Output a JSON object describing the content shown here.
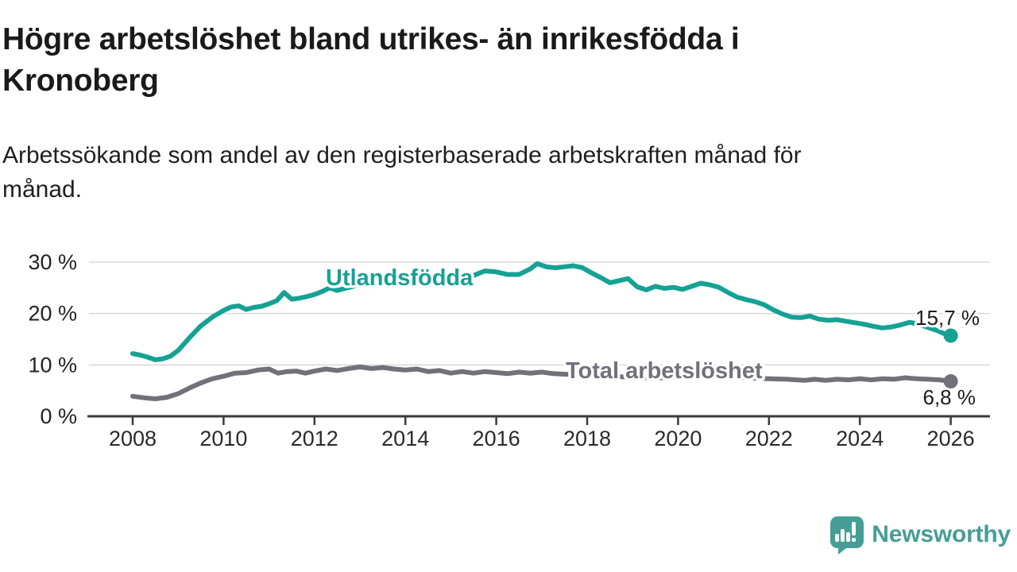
{
  "header": {
    "title_lines": [
      "Högre arbetslöshet bland utrikes- än inrikesfödda i",
      "Kronoberg"
    ],
    "subtitle_lines": [
      "Arbetssökande som andel av den registerbaserade arbetskraften månad för",
      "månad."
    ]
  },
  "footer": {
    "brand": "Newsworthy",
    "logo_icon": "speech-bubble-bar-chart-icon"
  },
  "colors": {
    "accent_teal": "#16a195",
    "series_gray": "#727079",
    "brand_teal": "#459e96",
    "grid": "#d9d9d9",
    "axis": "#3b3b3b",
    "text_dark": "#1c1c1c"
  },
  "chart_data": {
    "type": "line",
    "title": "Högre arbetslöshet bland utrikes- än inrikesfödda i Kronoberg",
    "subtitle": "Arbetssökande som andel av den registerbaserade arbetskraften månad för månad.",
    "legend_position": "inline-labels",
    "x_axis": {
      "ticks": [
        2008,
        2010,
        2012,
        2014,
        2016,
        2018,
        2020,
        2022,
        2024,
        2026
      ],
      "range": [
        2007.0,
        2026.9
      ],
      "grid": false
    },
    "y_axis": {
      "tick_values": [
        0,
        10,
        20,
        30
      ],
      "tick_labels": [
        "0 %",
        "10 %",
        "20 %",
        "30 %"
      ],
      "range": [
        0,
        31
      ],
      "grid": true
    },
    "series": [
      {
        "name": "Utlandsfödda",
        "color": "#16a195",
        "end_value": 15.7,
        "end_label": "15,7 %",
        "points": [
          [
            2008.0,
            12.2
          ],
          [
            2008.17,
            11.9
          ],
          [
            2008.33,
            11.5
          ],
          [
            2008.5,
            11.0
          ],
          [
            2008.67,
            11.2
          ],
          [
            2008.83,
            11.7
          ],
          [
            2009.0,
            12.8
          ],
          [
            2009.25,
            15.3
          ],
          [
            2009.5,
            17.6
          ],
          [
            2009.75,
            19.3
          ],
          [
            2010.0,
            20.6
          ],
          [
            2010.17,
            21.3
          ],
          [
            2010.33,
            21.5
          ],
          [
            2010.5,
            20.8
          ],
          [
            2010.67,
            21.2
          ],
          [
            2010.83,
            21.4
          ],
          [
            2011.0,
            21.9
          ],
          [
            2011.17,
            22.5
          ],
          [
            2011.33,
            24.1
          ],
          [
            2011.5,
            22.8
          ],
          [
            2011.67,
            23.0
          ],
          [
            2011.83,
            23.3
          ],
          [
            2012.0,
            23.7
          ],
          [
            2012.17,
            24.3
          ],
          [
            2012.33,
            25.0
          ],
          [
            2012.5,
            24.5
          ],
          [
            2012.67,
            24.9
          ],
          [
            2012.83,
            25.2
          ],
          [
            2013.0,
            25.8
          ],
          [
            2013.25,
            25.4
          ],
          [
            2013.5,
            26.0
          ],
          [
            2013.75,
            25.8
          ],
          [
            2014.0,
            26.1
          ],
          [
            2014.25,
            26.3
          ],
          [
            2014.5,
            26.1
          ],
          [
            2014.75,
            26.5
          ],
          [
            2015.0,
            26.6
          ],
          [
            2015.25,
            27.0
          ],
          [
            2015.5,
            27.4
          ],
          [
            2015.75,
            28.3
          ],
          [
            2016.0,
            28.1
          ],
          [
            2016.25,
            27.6
          ],
          [
            2016.5,
            27.6
          ],
          [
            2016.75,
            28.7
          ],
          [
            2016.9,
            29.7
          ],
          [
            2017.1,
            29.1
          ],
          [
            2017.3,
            28.9
          ],
          [
            2017.5,
            29.1
          ],
          [
            2017.7,
            29.3
          ],
          [
            2017.9,
            28.9
          ],
          [
            2018.1,
            27.9
          ],
          [
            2018.3,
            27.0
          ],
          [
            2018.5,
            26.0
          ],
          [
            2018.7,
            26.4
          ],
          [
            2018.9,
            26.8
          ],
          [
            2019.1,
            25.2
          ],
          [
            2019.3,
            24.6
          ],
          [
            2019.5,
            25.3
          ],
          [
            2019.7,
            24.9
          ],
          [
            2019.9,
            25.1
          ],
          [
            2020.1,
            24.7
          ],
          [
            2020.3,
            25.3
          ],
          [
            2020.5,
            25.9
          ],
          [
            2020.7,
            25.6
          ],
          [
            2020.9,
            25.1
          ],
          [
            2021.1,
            24.1
          ],
          [
            2021.3,
            23.2
          ],
          [
            2021.5,
            22.7
          ],
          [
            2021.7,
            22.3
          ],
          [
            2021.9,
            21.7
          ],
          [
            2022.1,
            20.7
          ],
          [
            2022.3,
            19.9
          ],
          [
            2022.5,
            19.3
          ],
          [
            2022.7,
            19.2
          ],
          [
            2022.9,
            19.5
          ],
          [
            2023.1,
            18.9
          ],
          [
            2023.3,
            18.7
          ],
          [
            2023.5,
            18.8
          ],
          [
            2023.7,
            18.5
          ],
          [
            2023.9,
            18.2
          ],
          [
            2024.1,
            17.9
          ],
          [
            2024.3,
            17.5
          ],
          [
            2024.5,
            17.2
          ],
          [
            2024.7,
            17.4
          ],
          [
            2024.9,
            17.8
          ],
          [
            2025.1,
            18.3
          ],
          [
            2025.3,
            17.9
          ],
          [
            2025.5,
            17.3
          ],
          [
            2025.7,
            16.7
          ],
          [
            2025.85,
            16.1
          ],
          [
            2026.0,
            15.7
          ]
        ]
      },
      {
        "name": "Total arbetslöshet",
        "color": "#727079",
        "end_value": 6.8,
        "end_label": "6,8 %",
        "points": [
          [
            2008.0,
            3.9
          ],
          [
            2008.25,
            3.6
          ],
          [
            2008.5,
            3.4
          ],
          [
            2008.75,
            3.7
          ],
          [
            2009.0,
            4.4
          ],
          [
            2009.25,
            5.5
          ],
          [
            2009.5,
            6.5
          ],
          [
            2009.75,
            7.3
          ],
          [
            2010.0,
            7.8
          ],
          [
            2010.25,
            8.4
          ],
          [
            2010.5,
            8.5
          ],
          [
            2010.75,
            9.0
          ],
          [
            2011.0,
            9.2
          ],
          [
            2011.2,
            8.4
          ],
          [
            2011.4,
            8.7
          ],
          [
            2011.6,
            8.8
          ],
          [
            2011.8,
            8.4
          ],
          [
            2012.0,
            8.8
          ],
          [
            2012.25,
            9.2
          ],
          [
            2012.5,
            8.9
          ],
          [
            2012.75,
            9.3
          ],
          [
            2013.0,
            9.6
          ],
          [
            2013.25,
            9.3
          ],
          [
            2013.5,
            9.5
          ],
          [
            2013.75,
            9.2
          ],
          [
            2014.0,
            9.0
          ],
          [
            2014.25,
            9.2
          ],
          [
            2014.5,
            8.7
          ],
          [
            2014.75,
            8.9
          ],
          [
            2015.0,
            8.4
          ],
          [
            2015.25,
            8.7
          ],
          [
            2015.5,
            8.4
          ],
          [
            2015.75,
            8.7
          ],
          [
            2016.0,
            8.5
          ],
          [
            2016.25,
            8.3
          ],
          [
            2016.5,
            8.6
          ],
          [
            2016.75,
            8.4
          ],
          [
            2017.0,
            8.6
          ],
          [
            2017.25,
            8.3
          ],
          [
            2017.5,
            8.2
          ],
          [
            2018.0,
            8.0
          ],
          [
            2018.5,
            7.8
          ],
          [
            2019.0,
            7.6
          ],
          [
            2019.5,
            7.4
          ],
          [
            2020.0,
            7.7
          ],
          [
            2020.5,
            8.0
          ],
          [
            2021.0,
            7.8
          ],
          [
            2021.5,
            7.5
          ],
          [
            2022.0,
            7.3
          ],
          [
            2022.4,
            7.2
          ],
          [
            2022.6,
            7.1
          ],
          [
            2022.8,
            7.0
          ],
          [
            2023.0,
            7.2
          ],
          [
            2023.25,
            7.0
          ],
          [
            2023.5,
            7.2
          ],
          [
            2023.75,
            7.1
          ],
          [
            2024.0,
            7.3
          ],
          [
            2024.25,
            7.1
          ],
          [
            2024.5,
            7.3
          ],
          [
            2024.75,
            7.2
          ],
          [
            2025.0,
            7.5
          ],
          [
            2025.25,
            7.3
          ],
          [
            2025.5,
            7.2
          ],
          [
            2025.75,
            7.1
          ],
          [
            2026.0,
            6.8
          ]
        ]
      }
    ]
  }
}
